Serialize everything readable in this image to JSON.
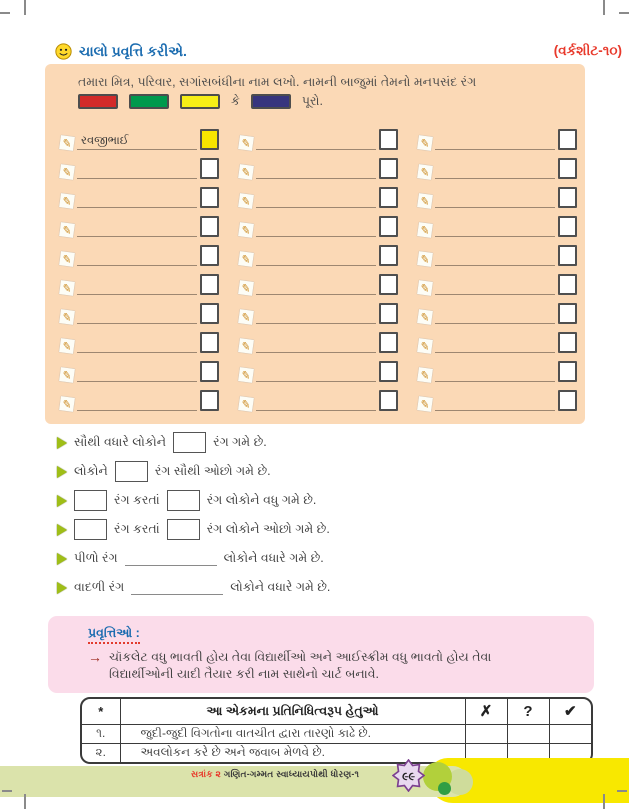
{
  "header": {
    "title": "ચાલો પ્રવૃત્તિ કરીએ.",
    "worksheet_label": "(વર્કશીટ-૧૦)"
  },
  "activity_box": {
    "instruction_line1": "તમારા મિત્ર, પરિવાર, સગાંસબંધીના નામ લખો. નામની બાજુમાં તેમનો મનપસંદ રંગ",
    "swatch_row": [
      {
        "kind": "color",
        "name": "red",
        "hex": "#d22b2a"
      },
      {
        "kind": "color",
        "name": "green",
        "hex": "#00994d"
      },
      {
        "kind": "color",
        "name": "yellow",
        "hex": "#f7ee17"
      },
      {
        "kind": "text",
        "text": "કે"
      },
      {
        "kind": "color",
        "name": "blue",
        "hex": "#37357e"
      },
      {
        "kind": "text",
        "text": "પૂરો."
      }
    ],
    "grid": {
      "rows": 10,
      "columns": 3,
      "filled_entries": [
        {
          "row": 0,
          "col": 0,
          "name": "રવજીભાઈ",
          "box_fill": "#f7e500"
        }
      ]
    }
  },
  "questions": [
    {
      "segments": [
        {
          "text": "સૌથી વધારે લોકોને"
        },
        {
          "box": true
        },
        {
          "text": "રંગ ગમે છે."
        }
      ]
    },
    {
      "segments": [
        {
          "text": "લોકોને"
        },
        {
          "box": true
        },
        {
          "text": "રંગ સૌથી ઓછો ગમે છે."
        }
      ]
    },
    {
      "segments": [
        {
          "box": true
        },
        {
          "text": "રંગ કરતાં"
        },
        {
          "box": true
        },
        {
          "text": "રંગ લોકોને વધુ ગમે છે."
        }
      ]
    },
    {
      "segments": [
        {
          "box": true
        },
        {
          "text": "રંગ કરતાં"
        },
        {
          "box": true
        },
        {
          "text": "રંગ લોકોને ઓછો ગમે છે."
        }
      ]
    },
    {
      "segments": [
        {
          "text": "પીળો રંગ"
        },
        {
          "blank": true
        },
        {
          "text": "લોકોને વધારે ગમે છે."
        }
      ]
    },
    {
      "segments": [
        {
          "text": "વાદળી રંગ"
        },
        {
          "blank": true
        },
        {
          "text": "લોકોને વધારે ગમે છે."
        }
      ]
    }
  ],
  "activities_box": {
    "heading": "પ્રવૃત્તિઓ :",
    "arrow": "→",
    "items": [
      "ચૉકલેટ વધુ ભાવતી હોય તેવા વિદ્યાર્થીઓ અને આઈસ્ક્રીમ વધુ ભાવતો હોય તેવા વિદ્યાર્થીઓની યાદી તૈયાર કરી નામ સાથેનો ચાર્ટ બનાવે."
    ]
  },
  "table": {
    "headers": {
      "star": "*",
      "title": "આ એકમના પ્રતિનિધિત્વરૂપ હેતુઓ",
      "cross": "✗",
      "question": "?",
      "check": "✔"
    },
    "rows": [
      {
        "no": "૧.",
        "text": "જુદી-જુદી વિગતોના વાતચીત દ્વારા તારણો કાઢે છે."
      },
      {
        "no": "૨.",
        "text": "અવલોકન કરે છે અને જવાબ મેળવે છે."
      }
    ]
  },
  "footer": {
    "chapter_label": "સત્રાંક ૨",
    "book_label": "ગણિત-ગમ્મત સ્વાધ્યાયપોથી ધોરણ-૧",
    "page_number": "૯૯"
  }
}
